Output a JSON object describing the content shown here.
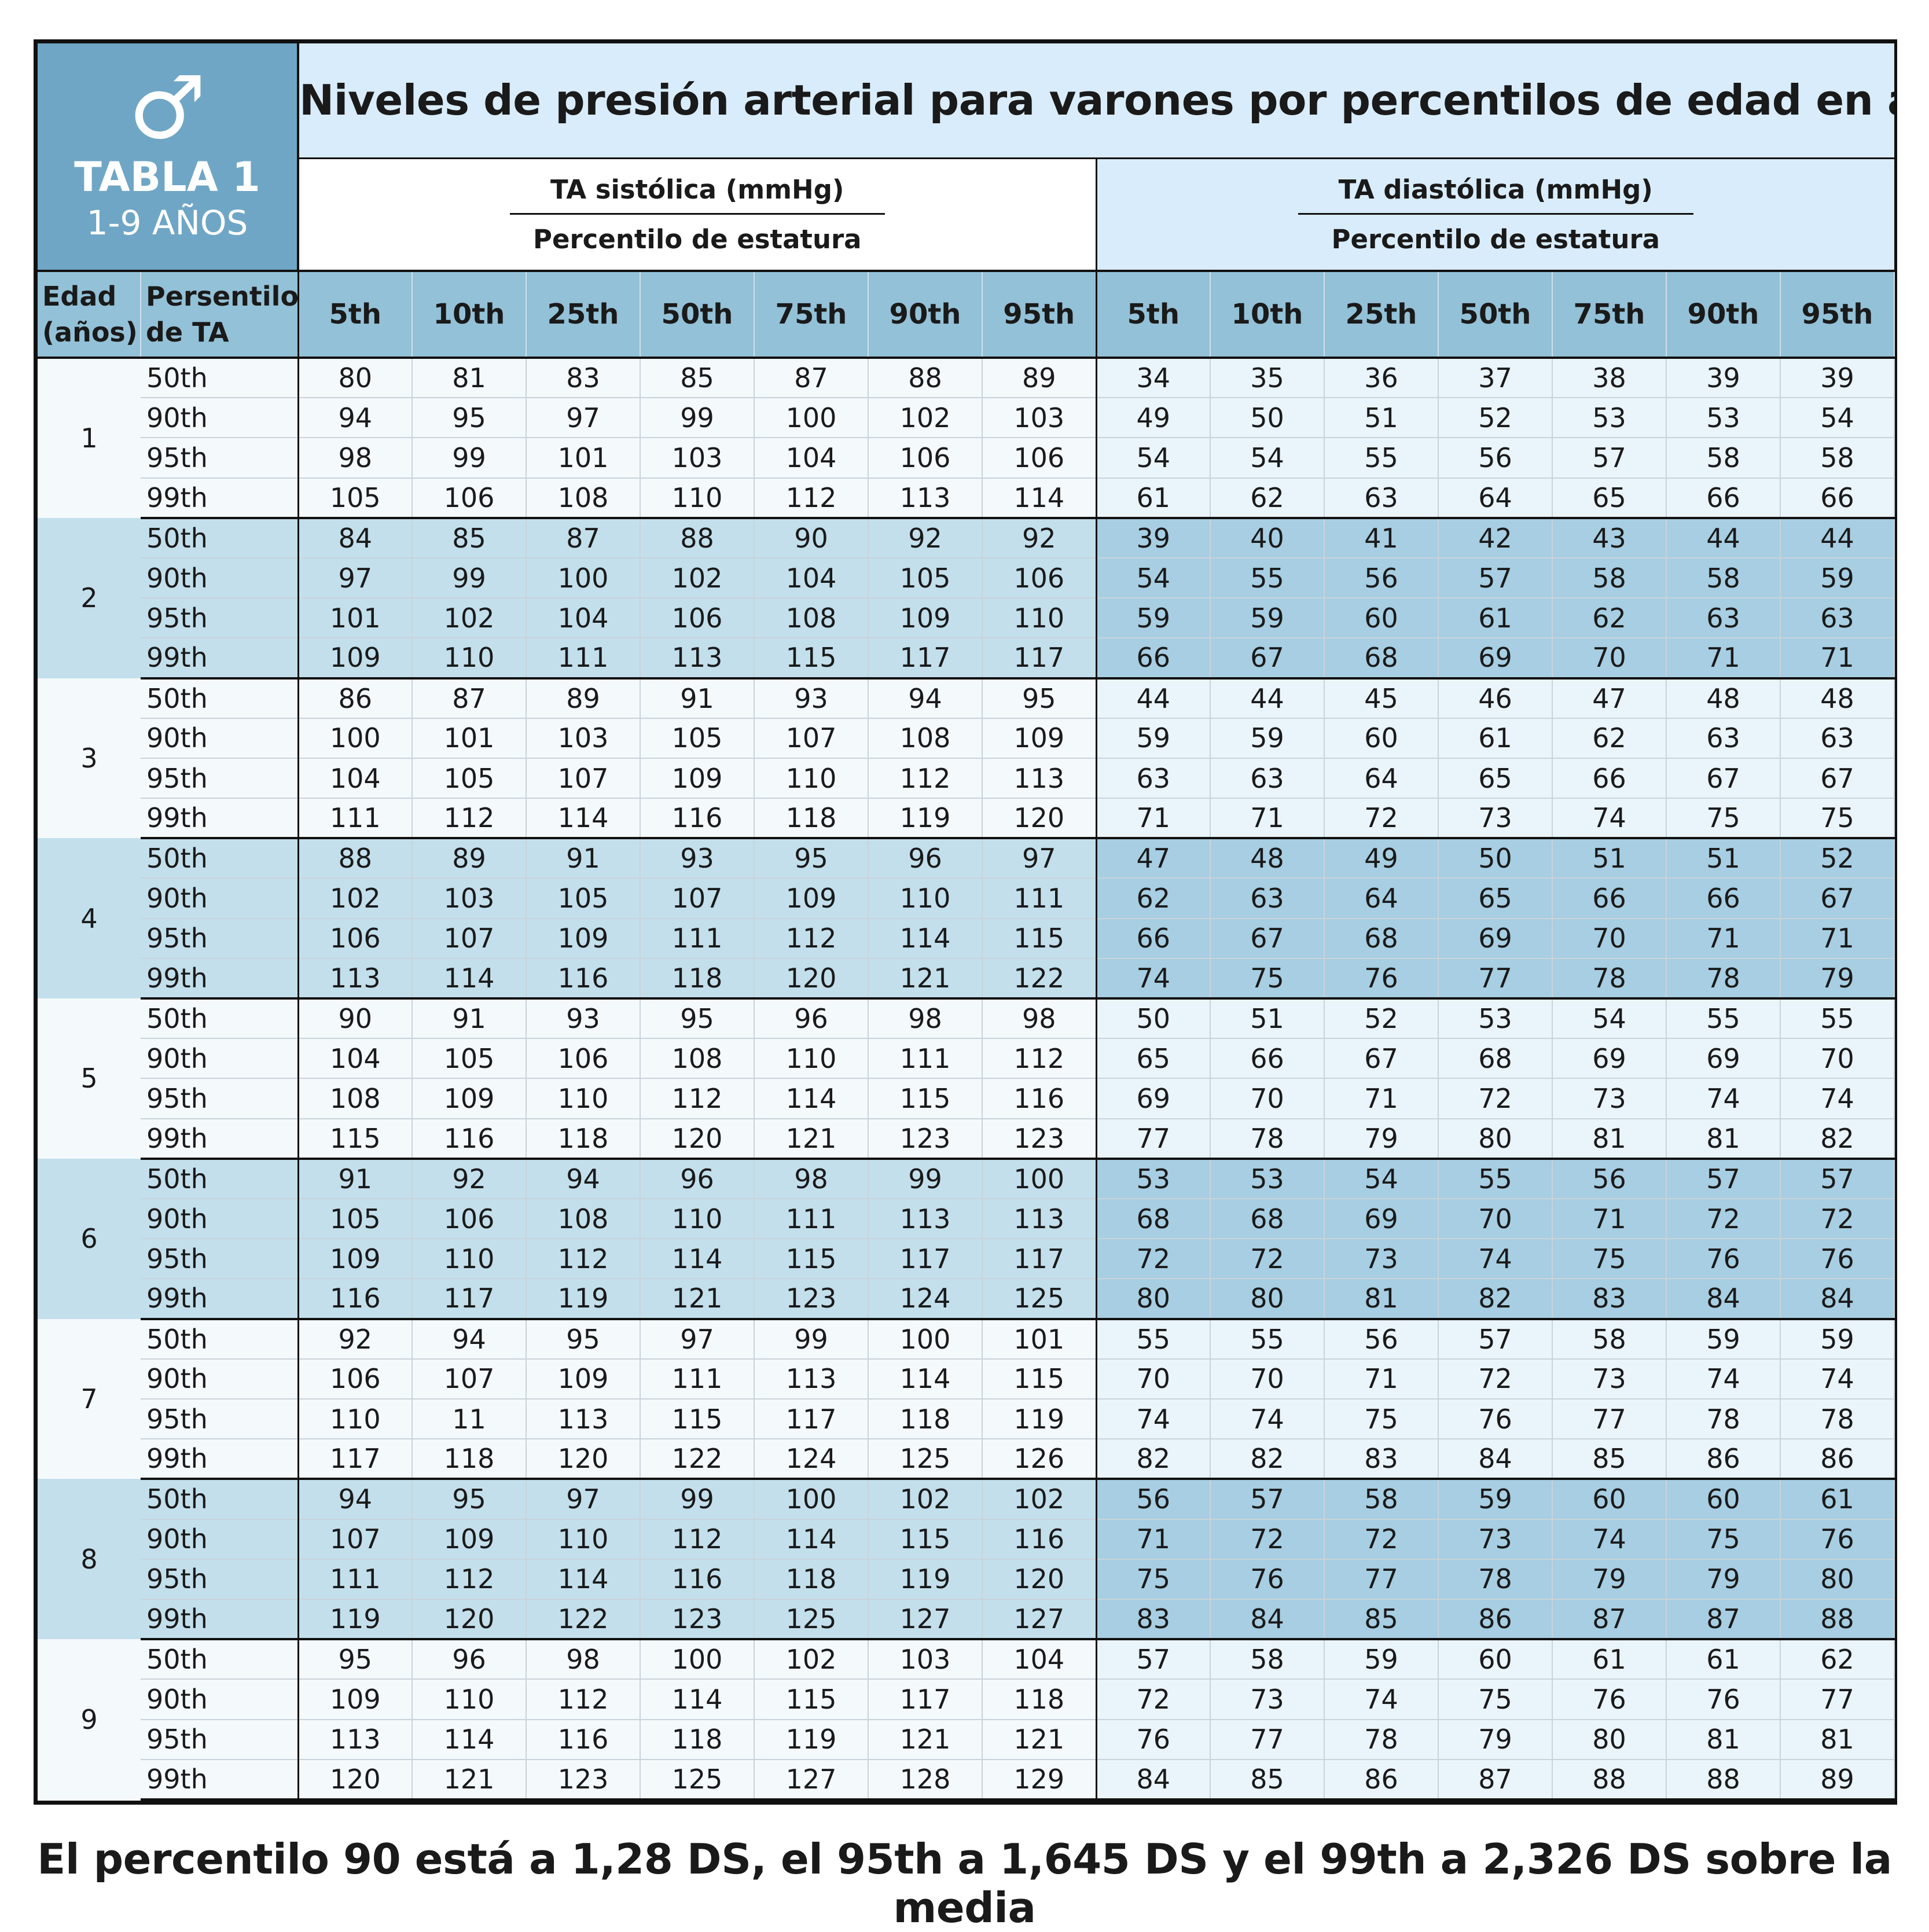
{
  "badge": {
    "symbol": "♂",
    "label": "TABLA 1",
    "sublabel": "1-9 AÑOS"
  },
  "title": "Niveles de presión arterial para varones por percentilos de edad en años y talla",
  "systolic_header": {
    "label": "TA sistólica (mmHg)",
    "sublabel": "Percentilo de estatura"
  },
  "diastolic_header": {
    "label": "TA diastólica (mmHg)",
    "sublabel": "Percentilo de estatura"
  },
  "row_headers": {
    "age": [
      "Edad",
      "(años)"
    ],
    "percentile": [
      "Persentilo",
      "de TA"
    ]
  },
  "height_percentiles": [
    "5th",
    "10th",
    "25th",
    "50th",
    "75th",
    "90th",
    "95th"
  ],
  "bp_percentiles": [
    "50th",
    "90th",
    "95th",
    "99th"
  ],
  "groups": [
    {
      "age": "1",
      "rows": [
        {
          "sys": [
            80,
            81,
            83,
            85,
            87,
            88,
            89
          ],
          "dia": [
            34,
            35,
            36,
            37,
            38,
            39,
            39
          ]
        },
        {
          "sys": [
            94,
            95,
            97,
            99,
            100,
            102,
            103
          ],
          "dia": [
            49,
            50,
            51,
            52,
            53,
            53,
            54
          ]
        },
        {
          "sys": [
            98,
            99,
            101,
            103,
            104,
            106,
            106
          ],
          "dia": [
            54,
            54,
            55,
            56,
            57,
            58,
            58
          ]
        },
        {
          "sys": [
            105,
            106,
            108,
            110,
            112,
            113,
            114
          ],
          "dia": [
            61,
            62,
            63,
            64,
            65,
            66,
            66
          ]
        }
      ]
    },
    {
      "age": "2",
      "rows": [
        {
          "sys": [
            84,
            85,
            87,
            88,
            90,
            92,
            92
          ],
          "dia": [
            39,
            40,
            41,
            42,
            43,
            44,
            44
          ]
        },
        {
          "sys": [
            97,
            99,
            100,
            102,
            104,
            105,
            106
          ],
          "dia": [
            54,
            55,
            56,
            57,
            58,
            58,
            59
          ]
        },
        {
          "sys": [
            101,
            102,
            104,
            106,
            108,
            109,
            110
          ],
          "dia": [
            59,
            59,
            60,
            61,
            62,
            63,
            63
          ]
        },
        {
          "sys": [
            109,
            110,
            111,
            113,
            115,
            117,
            117
          ],
          "dia": [
            66,
            67,
            68,
            69,
            70,
            71,
            71
          ]
        }
      ]
    },
    {
      "age": "3",
      "rows": [
        {
          "sys": [
            86,
            87,
            89,
            91,
            93,
            94,
            95
          ],
          "dia": [
            44,
            44,
            45,
            46,
            47,
            48,
            48
          ]
        },
        {
          "sys": [
            100,
            101,
            103,
            105,
            107,
            108,
            109
          ],
          "dia": [
            59,
            59,
            60,
            61,
            62,
            63,
            63
          ]
        },
        {
          "sys": [
            104,
            105,
            107,
            109,
            110,
            112,
            113
          ],
          "dia": [
            63,
            63,
            64,
            65,
            66,
            67,
            67
          ]
        },
        {
          "sys": [
            111,
            112,
            114,
            116,
            118,
            119,
            120
          ],
          "dia": [
            71,
            71,
            72,
            73,
            74,
            75,
            75
          ]
        }
      ]
    },
    {
      "age": "4",
      "rows": [
        {
          "sys": [
            88,
            89,
            91,
            93,
            95,
            96,
            97
          ],
          "dia": [
            47,
            48,
            49,
            50,
            51,
            51,
            52
          ]
        },
        {
          "sys": [
            102,
            103,
            105,
            107,
            109,
            110,
            111
          ],
          "dia": [
            62,
            63,
            64,
            65,
            66,
            66,
            67
          ]
        },
        {
          "sys": [
            106,
            107,
            109,
            111,
            112,
            114,
            115
          ],
          "dia": [
            66,
            67,
            68,
            69,
            70,
            71,
            71
          ]
        },
        {
          "sys": [
            113,
            114,
            116,
            118,
            120,
            121,
            122
          ],
          "dia": [
            74,
            75,
            76,
            77,
            78,
            78,
            79
          ]
        }
      ]
    },
    {
      "age": "5",
      "rows": [
        {
          "sys": [
            90,
            91,
            93,
            95,
            96,
            98,
            98
          ],
          "dia": [
            50,
            51,
            52,
            53,
            54,
            55,
            55
          ]
        },
        {
          "sys": [
            104,
            105,
            106,
            108,
            110,
            111,
            112
          ],
          "dia": [
            65,
            66,
            67,
            68,
            69,
            69,
            70
          ]
        },
        {
          "sys": [
            108,
            109,
            110,
            112,
            114,
            115,
            116
          ],
          "dia": [
            69,
            70,
            71,
            72,
            73,
            74,
            74
          ]
        },
        {
          "sys": [
            115,
            116,
            118,
            120,
            121,
            123,
            123
          ],
          "dia": [
            77,
            78,
            79,
            80,
            81,
            81,
            82
          ]
        }
      ]
    },
    {
      "age": "6",
      "rows": [
        {
          "sys": [
            91,
            92,
            94,
            96,
            98,
            99,
            100
          ],
          "dia": [
            53,
            53,
            54,
            55,
            56,
            57,
            57
          ]
        },
        {
          "sys": [
            105,
            106,
            108,
            110,
            111,
            113,
            113
          ],
          "dia": [
            68,
            68,
            69,
            70,
            71,
            72,
            72
          ]
        },
        {
          "sys": [
            109,
            110,
            112,
            114,
            115,
            117,
            117
          ],
          "dia": [
            72,
            72,
            73,
            74,
            75,
            76,
            76
          ]
        },
        {
          "sys": [
            116,
            117,
            119,
            121,
            123,
            124,
            125
          ],
          "dia": [
            80,
            80,
            81,
            82,
            83,
            84,
            84
          ]
        }
      ]
    },
    {
      "age": "7",
      "rows": [
        {
          "sys": [
            92,
            94,
            95,
            97,
            99,
            100,
            101
          ],
          "dia": [
            55,
            55,
            56,
            57,
            58,
            59,
            59
          ]
        },
        {
          "sys": [
            106,
            107,
            109,
            111,
            113,
            114,
            115
          ],
          "dia": [
            70,
            70,
            71,
            72,
            73,
            74,
            74
          ]
        },
        {
          "sys": [
            110,
            11,
            113,
            115,
            117,
            118,
            119
          ],
          "dia": [
            74,
            74,
            75,
            76,
            77,
            78,
            78
          ]
        },
        {
          "sys": [
            117,
            118,
            120,
            122,
            124,
            125,
            126
          ],
          "dia": [
            82,
            82,
            83,
            84,
            85,
            86,
            86
          ]
        }
      ]
    },
    {
      "age": "8",
      "rows": [
        {
          "sys": [
            94,
            95,
            97,
            99,
            100,
            102,
            102
          ],
          "dia": [
            56,
            57,
            58,
            59,
            60,
            60,
            61
          ]
        },
        {
          "sys": [
            107,
            109,
            110,
            112,
            114,
            115,
            116
          ],
          "dia": [
            71,
            72,
            72,
            73,
            74,
            75,
            76
          ]
        },
        {
          "sys": [
            111,
            112,
            114,
            116,
            118,
            119,
            120
          ],
          "dia": [
            75,
            76,
            77,
            78,
            79,
            79,
            80
          ]
        },
        {
          "sys": [
            119,
            120,
            122,
            123,
            125,
            127,
            127
          ],
          "dia": [
            83,
            84,
            85,
            86,
            87,
            87,
            88
          ]
        }
      ]
    },
    {
      "age": "9",
      "rows": [
        {
          "sys": [
            95,
            96,
            98,
            100,
            102,
            103,
            104
          ],
          "dia": [
            57,
            58,
            59,
            60,
            61,
            61,
            62
          ]
        },
        {
          "sys": [
            109,
            110,
            112,
            114,
            115,
            117,
            118
          ],
          "dia": [
            72,
            73,
            74,
            75,
            76,
            76,
            77
          ]
        },
        {
          "sys": [
            113,
            114,
            116,
            118,
            119,
            121,
            121
          ],
          "dia": [
            76,
            77,
            78,
            79,
            80,
            81,
            81
          ]
        },
        {
          "sys": [
            120,
            121,
            123,
            125,
            127,
            128,
            129
          ],
          "dia": [
            84,
            85,
            86,
            87,
            88,
            88,
            89
          ]
        }
      ]
    }
  ],
  "footnote": "El percentilo 90 está a 1,28 DS, el 95th a 1,645 DS y el 99th a 2,326 DS sobre la media",
  "colors": {
    "badge": "#6fa6c5",
    "title_bg": "#d9ecfb",
    "column_header": "#93c1d7",
    "band_light": "#f4f9fc",
    "band_dark": "#c3dfec",
    "band_dark_diastolic": "#a7cee2",
    "border": "#111111"
  }
}
